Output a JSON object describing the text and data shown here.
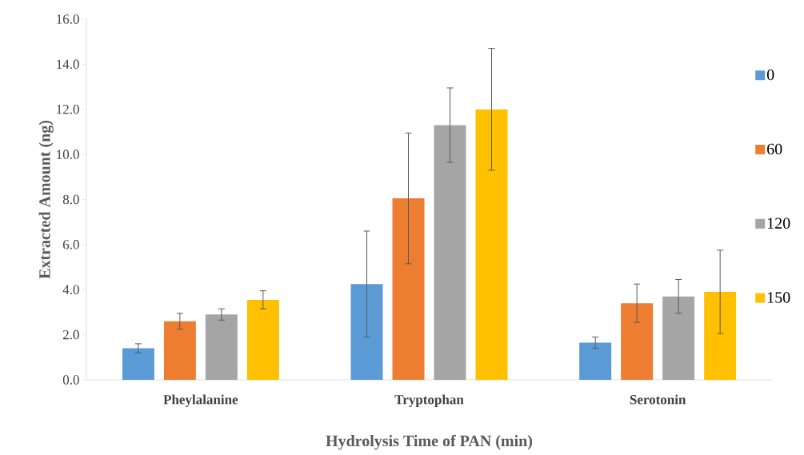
{
  "chart_data": {
    "type": "bar",
    "xlabel": "Hydrolysis Time of PAN (min)",
    "ylabel": "Extracted Amount (ng)",
    "categories": [
      "Pheylalanine",
      "Tryptophan",
      "Serotonin"
    ],
    "series": [
      {
        "name": "0",
        "color": "#5b9bd5",
        "values": [
          1.4,
          4.25,
          1.65
        ],
        "errors": [
          0.2,
          2.35,
          0.25
        ]
      },
      {
        "name": "60",
        "color": "#ed7d31",
        "values": [
          2.6,
          8.05,
          3.4
        ],
        "errors": [
          0.35,
          2.9,
          0.85
        ]
      },
      {
        "name": "120",
        "color": "#a5a5a5",
        "values": [
          2.9,
          11.3,
          3.7
        ],
        "errors": [
          0.25,
          1.65,
          0.75
        ]
      },
      {
        "name": "150",
        "color": "#ffc000",
        "values": [
          3.55,
          12.0,
          3.9
        ],
        "errors": [
          0.4,
          2.7,
          1.85
        ]
      }
    ],
    "ylim": [
      0,
      16
    ],
    "yticks": [
      {
        "value": 0,
        "label": "0.0"
      },
      {
        "value": 2,
        "label": "2.0"
      },
      {
        "value": 4,
        "label": "4.0"
      },
      {
        "value": 6,
        "label": "6.0"
      },
      {
        "value": 8,
        "label": "8.0"
      },
      {
        "value": 10,
        "label": "10.0"
      },
      {
        "value": 12,
        "label": "12.0"
      },
      {
        "value": 14,
        "label": "14.0"
      },
      {
        "value": 16,
        "label": "16.0"
      }
    ],
    "grid": false,
    "legend": "right"
  }
}
